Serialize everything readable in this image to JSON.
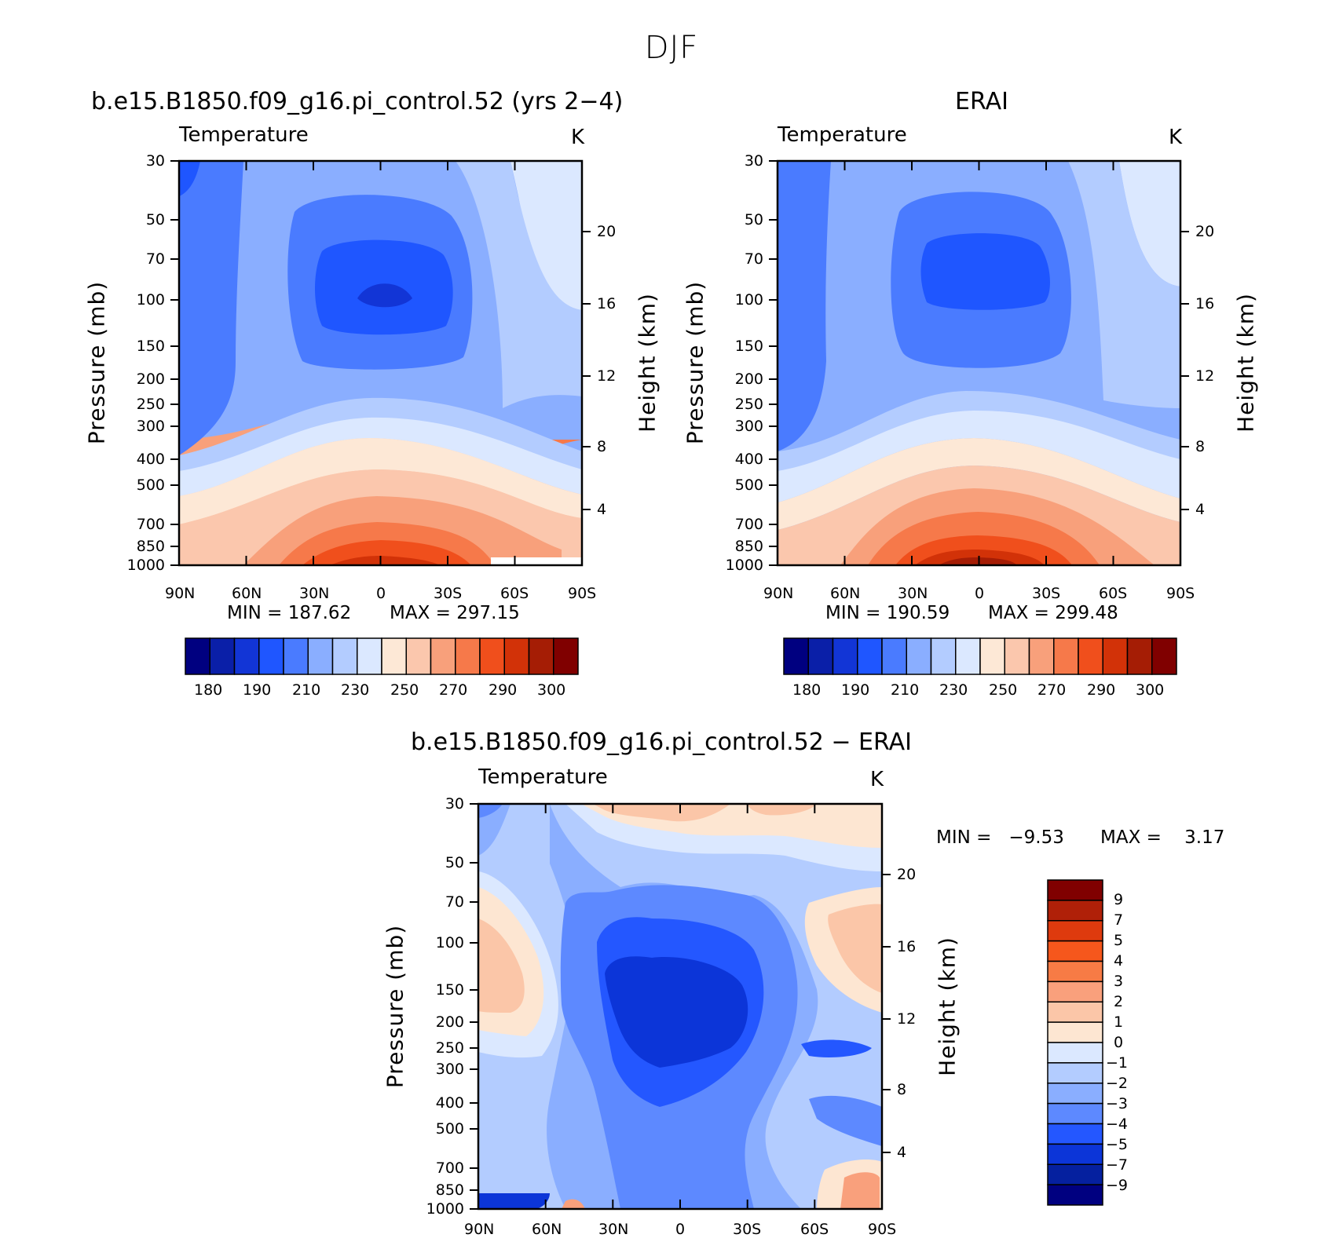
{
  "figure_title": "DJF",
  "chart_data": [
    {
      "type": "heatmap",
      "panel": "model",
      "title": "b.e15.B1850.f09_g16.pi_control.52 (yrs 2−4)",
      "subtitle": "Temperature",
      "units": "K",
      "x_ticks": [
        "90N",
        "60N",
        "30N",
        "0",
        "30S",
        "60S",
        "90S"
      ],
      "y_label": "Pressure (mb)",
      "y_ticks": [
        "30",
        "50",
        "70",
        "100",
        "150",
        "200",
        "250",
        "300",
        "400",
        "500",
        "700",
        "850",
        "1000"
      ],
      "y2_label": "Height (km)",
      "y2_ticks": [
        "20",
        "16",
        "12",
        "8",
        "4"
      ],
      "min_text": "MIN = 187.62",
      "max_text": "MAX = 297.15",
      "min": 187.62,
      "max": 297.15,
      "colorbar_labels": [
        "180",
        "190",
        "210",
        "230",
        "250",
        "270",
        "290",
        "300"
      ]
    },
    {
      "type": "heatmap",
      "panel": "obs",
      "title": "ERAI",
      "subtitle": "Temperature",
      "units": "K",
      "x_ticks": [
        "90N",
        "60N",
        "30N",
        "0",
        "30S",
        "60S",
        "90S"
      ],
      "y_label": "Pressure (mb)",
      "y_ticks": [
        "30",
        "50",
        "70",
        "100",
        "150",
        "200",
        "250",
        "300",
        "400",
        "500",
        "700",
        "850",
        "1000"
      ],
      "y2_label": "Height (km)",
      "y2_ticks": [
        "20",
        "16",
        "12",
        "8",
        "4"
      ],
      "min_text": "MIN = 190.59",
      "max_text": "MAX = 299.48",
      "min": 190.59,
      "max": 299.48,
      "colorbar_labels": [
        "180",
        "190",
        "210",
        "230",
        "250",
        "270",
        "290",
        "300"
      ]
    },
    {
      "type": "heatmap",
      "panel": "difference",
      "title": "b.e15.B1850.f09_g16.pi_control.52 − ERAI",
      "subtitle": "Temperature",
      "units": "K",
      "x_ticks": [
        "90N",
        "60N",
        "30N",
        "0",
        "30S",
        "60S",
        "90S"
      ],
      "y_label": "Pressure (mb)",
      "y_ticks": [
        "30",
        "50",
        "70",
        "100",
        "150",
        "200",
        "250",
        "300",
        "400",
        "500",
        "700",
        "850",
        "1000"
      ],
      "y2_label": "Height (km)",
      "y2_ticks": [
        "20",
        "16",
        "12",
        "8",
        "4"
      ],
      "min_text": "MIN =   −9.53",
      "max_text": "MAX =    3.17",
      "min": -9.53,
      "max": 3.17,
      "colorbar_labels": [
        "9",
        "7",
        "5",
        "4",
        "3",
        "2",
        "1",
        "0",
        "−1",
        "−2",
        "−3",
        "−4",
        "−5",
        "−7",
        "−9"
      ]
    }
  ],
  "colors": {
    "abs_scale": [
      "#000080",
      "#0a1fa8",
      "#1235d6",
      "#1f56ff",
      "#4a7bff",
      "#8aaeff",
      "#b3ccff",
      "#dbe8ff",
      "#fde8d6",
      "#fbc7ad",
      "#f8a07b",
      "#f6794a",
      "#f04f1c",
      "#d23208",
      "#a51d05",
      "#800000"
    ],
    "diff_scale": [
      "#800000",
      "#b02008",
      "#de3a0e",
      "#f6571c",
      "#f77b45",
      "#f9a07c",
      "#fbc6a8",
      "#fde6d2",
      "#dbe8ff",
      "#b3ccff",
      "#8aaeff",
      "#5d89ff",
      "#2457ff",
      "#0c35d8",
      "#05209f",
      "#000080"
    ]
  }
}
